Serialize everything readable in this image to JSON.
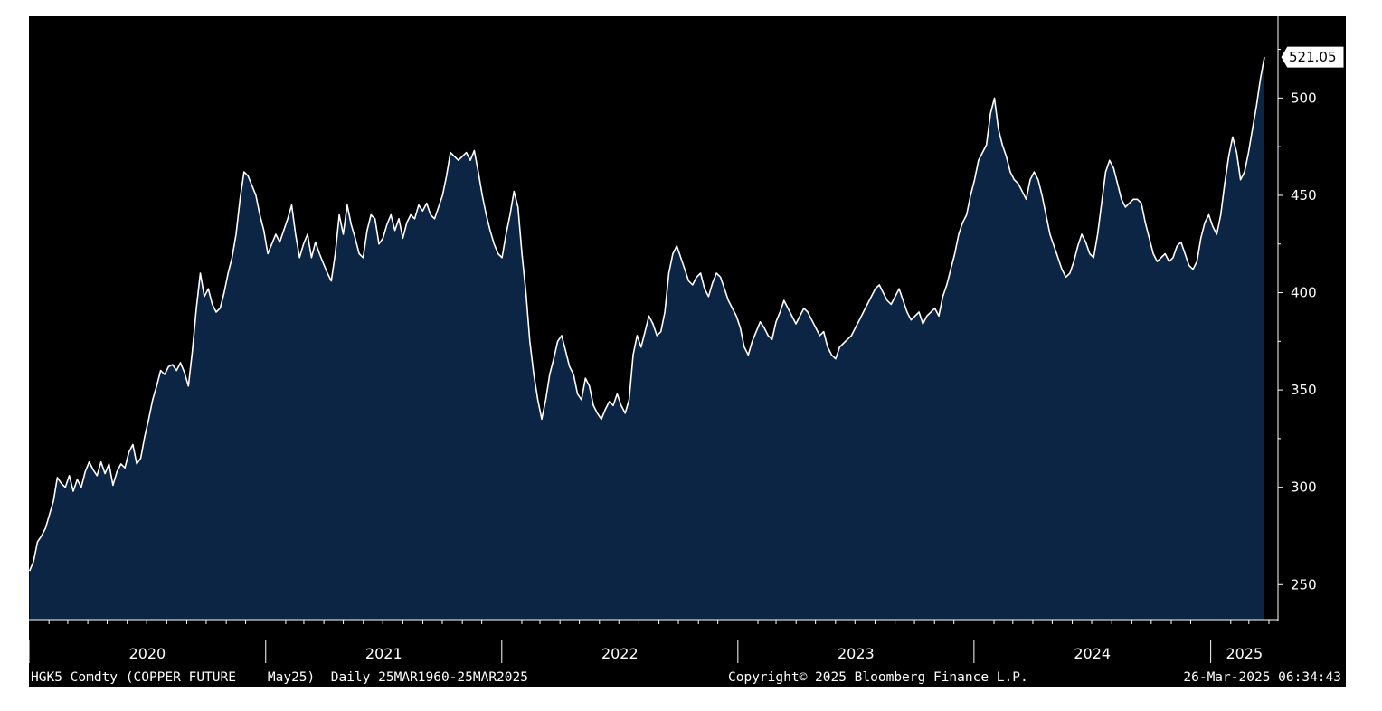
{
  "footer": {
    "security": "HGK5 Comdty (COPPER FUTURE    May25)  Daily 25MAR1960-25MAR2025",
    "copyright": "Copyright© 2025 Bloomberg Finance L.P.",
    "timestamp": "26-Mar-2025 06:34:43"
  },
  "colors": {
    "background": "#000000",
    "area_fill": "#0c2545",
    "line": "#ffffff",
    "axis": "#ffffff"
  },
  "chart_data": {
    "type": "area",
    "title": "",
    "xlabel": "",
    "ylabel": "",
    "x_start": "2020-01-02",
    "x_end": "2025-03-25",
    "xlim": [
      "2020-01-01",
      "2025-04-15"
    ],
    "ylim": [
      232,
      542
    ],
    "y_ticks": [
      250,
      300,
      350,
      400,
      450,
      500
    ],
    "x_year_labels": [
      "2020",
      "2021",
      "2022",
      "2023",
      "2024",
      "2025"
    ],
    "last_value": 521.05,
    "last_value_label": "521.05",
    "grid": false,
    "legend": "none",
    "series": [
      {
        "values": [
          257,
          262,
          272,
          275,
          279,
          286,
          293,
          305,
          302,
          300,
          306,
          298,
          304,
          300,
          308,
          313,
          309,
          306,
          313,
          307,
          312,
          301,
          308,
          312,
          310,
          318,
          322,
          312,
          315,
          326,
          335,
          345,
          352,
          360,
          358,
          362,
          363,
          360,
          364,
          359,
          352,
          370,
          392,
          410,
          398,
          402,
          394,
          390,
          392,
          400,
          410,
          418,
          430,
          448,
          462,
          460,
          455,
          450,
          440,
          432,
          420,
          425,
          430,
          426,
          432,
          438,
          445,
          430,
          418,
          425,
          430,
          418,
          426,
          420,
          415,
          410,
          406,
          420,
          440,
          430,
          445,
          435,
          428,
          420,
          418,
          432,
          440,
          438,
          425,
          428,
          435,
          440,
          432,
          438,
          428,
          436,
          440,
          438,
          445,
          442,
          446,
          440,
          438,
          444,
          450,
          460,
          472,
          470,
          468,
          470,
          472,
          468,
          473,
          462,
          450,
          440,
          432,
          425,
          420,
          418,
          430,
          440,
          452,
          444,
          420,
          400,
          375,
          358,
          345,
          335,
          345,
          358,
          366,
          375,
          378,
          370,
          362,
          358,
          348,
          345,
          356,
          352,
          342,
          338,
          335,
          340,
          344,
          342,
          348,
          342,
          338,
          345,
          368,
          378,
          372,
          380,
          388,
          384,
          378,
          380,
          390,
          410,
          420,
          424,
          418,
          412,
          406,
          404,
          408,
          410,
          402,
          398,
          405,
          410,
          408,
          402,
          396,
          392,
          388,
          382,
          372,
          368,
          375,
          380,
          385,
          382,
          378,
          376,
          385,
          390,
          396,
          392,
          388,
          384,
          388,
          392,
          390,
          386,
          382,
          378,
          380,
          372,
          368,
          366,
          372,
          374,
          376,
          378,
          382,
          386,
          390,
          394,
          398,
          402,
          404,
          400,
          396,
          394,
          398,
          402,
          396,
          390,
          386,
          388,
          390,
          384,
          388,
          390,
          392,
          388,
          398,
          404,
          412,
          420,
          430,
          436,
          440,
          450,
          458,
          468,
          472,
          476,
          492,
          500,
          484,
          476,
          470,
          462,
          458,
          456,
          452,
          448,
          458,
          462,
          458,
          450,
          440,
          430,
          424,
          418,
          412,
          408,
          410,
          416,
          424,
          430,
          426,
          420,
          418,
          430,
          446,
          462,
          468,
          464,
          456,
          448,
          444,
          446,
          448,
          448,
          446,
          436,
          428,
          420,
          416,
          418,
          420,
          416,
          418,
          424,
          426,
          420,
          414,
          412,
          416,
          428,
          436,
          440,
          434,
          430,
          440,
          456,
          470,
          480,
          472,
          458,
          462,
          472,
          484,
          496,
          510,
          521.05
        ]
      }
    ]
  }
}
